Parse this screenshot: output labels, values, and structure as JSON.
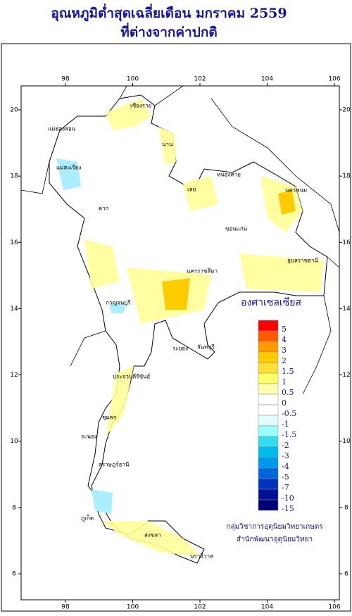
{
  "header": {
    "title": "อุณหภูมิต่ำสุดเฉลี่ยเดือน  มกราคม 2559",
    "subtitle": "ที่ต่างจากค่าปกติ"
  },
  "axes": {
    "lon_ticks": [
      98,
      100,
      102,
      104,
      106
    ],
    "lat_ticks": [
      20,
      18,
      16,
      14,
      12,
      10,
      8,
      6
    ]
  },
  "legend": {
    "unit": "องศาเซลเซียส",
    "labels": [
      5,
      4,
      3,
      2,
      1.5,
      1,
      0.5,
      0,
      -0.5,
      -1,
      -1.5,
      -2,
      -3,
      -4,
      -5,
      -7,
      -10,
      -15
    ],
    "colors": [
      "#ff0000",
      "#ff5a00",
      "#ff9900",
      "#ffcc00",
      "#ffe033",
      "#ffff66",
      "#ffffb0",
      "#ffffff",
      "#ffffff",
      "#e0ffff",
      "#99ffff",
      "#33ddee",
      "#00bbee",
      "#0099ee",
      "#0066dd",
      "#0033bb",
      "#001199",
      "#000077"
    ]
  },
  "provinces": [
    "เชียงราย",
    "น่าน",
    "แม่ฮ่องสอน",
    "แม่สะเรียง",
    "ตาก",
    "เลย",
    "หนองคาย",
    "นครพนม",
    "ขอนแก่น",
    "อุบลราชธานี",
    "นครราชสีมา",
    "กาญจนบุรี",
    "ระยอง",
    "จันทบุรี",
    "ประจวบคีรีขันธ์",
    "ชุมพร",
    "ระนอง",
    "สุราษฎร์ธานี",
    "ภูเก็ต",
    "สงขลา",
    "นราธิวาส"
  ],
  "credits": [
    "กลุ่มวิชาการอุตุนิยมวิทยาเกษตร",
    "สำนักพัฒนาอุตุนิยมวิทยา"
  ]
}
